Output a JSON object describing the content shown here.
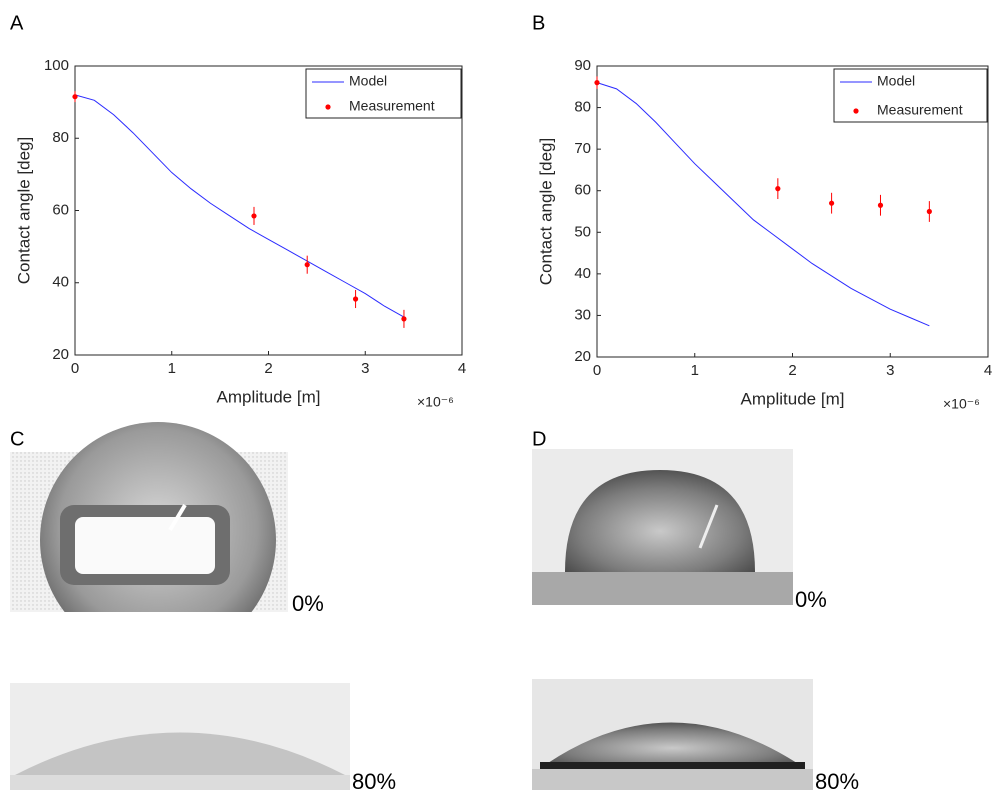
{
  "panel_labels": [
    "A",
    "B",
    "C",
    "D"
  ],
  "image_labels": {
    "C": [
      "0%",
      "80%"
    ],
    "D": [
      "0%",
      "80%"
    ]
  },
  "chart_data": [
    {
      "type": "line",
      "xlabel": "Amplitude [m]",
      "ylabel": "Contact angle [deg]",
      "x_multiplier": "×10⁻⁶",
      "xlim": [
        0,
        4
      ],
      "xticks": [
        0,
        1,
        2,
        3,
        4
      ],
      "ylim": [
        20,
        100
      ],
      "yticks": [
        20,
        40,
        60,
        80,
        100
      ],
      "legend": "upper right",
      "series": [
        {
          "name": "Model",
          "type": "line",
          "color": "#2b2bff",
          "x": [
            0,
            0.2,
            0.4,
            0.6,
            0.8,
            1.0,
            1.2,
            1.4,
            1.6,
            1.8,
            2.0,
            2.2,
            2.4,
            2.6,
            2.8,
            3.0,
            3.2,
            3.4
          ],
          "values": [
            92,
            90.5,
            86.5,
            81.5,
            76,
            70.5,
            66,
            62,
            58.5,
            55,
            52,
            49,
            46,
            43,
            40,
            37,
            33.5,
            30.5
          ]
        },
        {
          "name": "Measurement",
          "type": "scatter",
          "color": "#ff0000",
          "x": [
            0,
            1.85,
            2.4,
            2.9,
            3.4
          ],
          "values": [
            91.5,
            58.5,
            45,
            35.5,
            30
          ],
          "errors": [
            1.5,
            2.5,
            2.5,
            2.5,
            2.5
          ]
        }
      ]
    },
    {
      "type": "line",
      "xlabel": "Amplitude [m]",
      "ylabel": "Contact angle [deg]",
      "x_multiplier": "×10⁻⁶",
      "xlim": [
        0,
        4
      ],
      "xticks": [
        0,
        1,
        2,
        3,
        4
      ],
      "ylim": [
        20,
        90
      ],
      "yticks": [
        20,
        30,
        40,
        50,
        60,
        70,
        80,
        90
      ],
      "legend": "upper right",
      "series": [
        {
          "name": "Model",
          "type": "line",
          "color": "#2b2bff",
          "x": [
            0,
            0.2,
            0.4,
            0.6,
            0.8,
            1.0,
            1.2,
            1.4,
            1.6,
            1.8,
            2.0,
            2.2,
            2.4,
            2.6,
            2.8,
            3.0,
            3.2,
            3.4
          ],
          "values": [
            86,
            84.5,
            81,
            76.5,
            71.5,
            66.5,
            62,
            57.5,
            53,
            49.5,
            46,
            42.5,
            39.5,
            36.5,
            34,
            31.5,
            29.5,
            27.5
          ]
        },
        {
          "name": "Measurement",
          "type": "scatter",
          "color": "#ff0000",
          "x": [
            0,
            1.85,
            2.4,
            2.9,
            3.4
          ],
          "values": [
            86,
            60.5,
            57,
            56.5,
            55
          ],
          "errors": [
            1.5,
            2.5,
            2.5,
            2.5,
            2.5
          ]
        }
      ]
    }
  ]
}
